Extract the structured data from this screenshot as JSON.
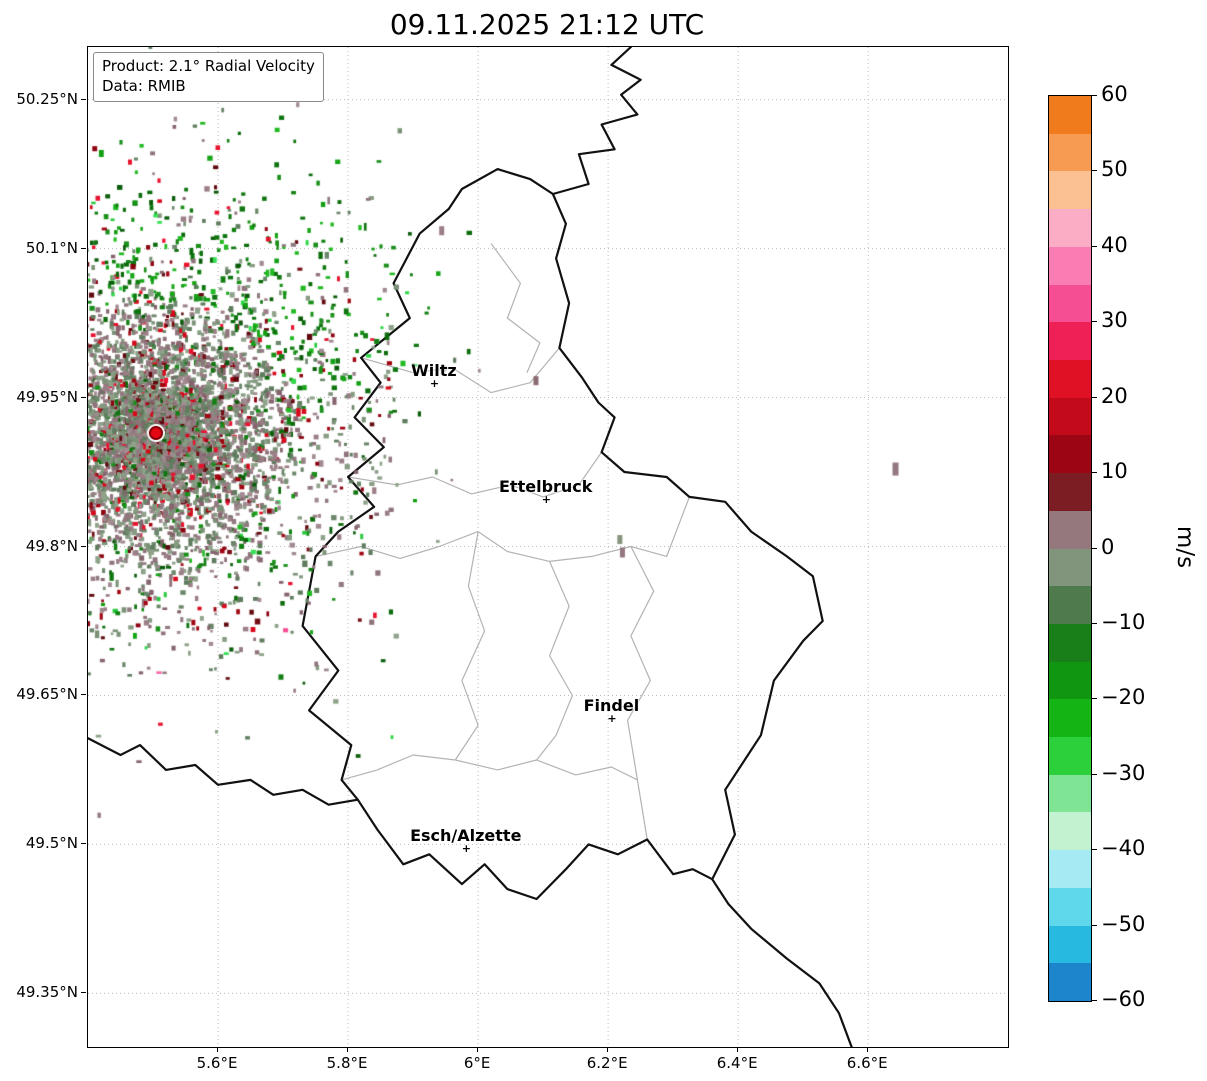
{
  "title": "09.11.2025 21:12 UTC",
  "info_box": {
    "product": "Product: 2.1° Radial Velocity",
    "source": "Data: RMIB"
  },
  "chart_data": {
    "type": "scatter",
    "title": "09.11.2025 21:12 UTC",
    "product": "2.1° Radial Velocity",
    "data_source": "RMIB",
    "x_axis": {
      "range": [
        5.4,
        6.815
      ],
      "ticks": [
        {
          "value": 5.6,
          "label": "5.6°E"
        },
        {
          "value": 5.8,
          "label": "5.8°E"
        },
        {
          "value": 6.0,
          "label": "6°E"
        },
        {
          "value": 6.2,
          "label": "6.2°E"
        },
        {
          "value": 6.4,
          "label": "6.4°E"
        },
        {
          "value": 6.6,
          "label": "6.6°E"
        }
      ]
    },
    "y_axis": {
      "range": [
        49.296,
        50.303
      ],
      "ticks": [
        {
          "value": 50.25,
          "label": "50.25°N"
        },
        {
          "value": 50.1,
          "label": "50.1°N"
        },
        {
          "value": 49.95,
          "label": "49.95°N"
        },
        {
          "value": 49.8,
          "label": "49.8°N"
        },
        {
          "value": 49.65,
          "label": "49.65°N"
        },
        {
          "value": 49.5,
          "label": "49.5°N"
        },
        {
          "value": 49.35,
          "label": "49.35°N"
        }
      ]
    },
    "colorbar": {
      "unit": "m/s",
      "range": [
        -60,
        60
      ],
      "ticks": [
        {
          "value": 60,
          "label": "60"
        },
        {
          "value": 50,
          "label": "50"
        },
        {
          "value": 40,
          "label": "40"
        },
        {
          "value": 30,
          "label": "30"
        },
        {
          "value": 20,
          "label": "20"
        },
        {
          "value": 10,
          "label": "10"
        },
        {
          "value": 0,
          "label": "0"
        },
        {
          "value": -10,
          "label": "−10"
        },
        {
          "value": -20,
          "label": "−20"
        },
        {
          "value": -30,
          "label": "−30"
        },
        {
          "value": -40,
          "label": "−40"
        },
        {
          "value": -50,
          "label": "−50"
        },
        {
          "value": -60,
          "label": "−60"
        }
      ],
      "bands": [
        {
          "from": 55,
          "to": 60,
          "color": "#ef7b1d"
        },
        {
          "from": 50,
          "to": 55,
          "color": "#f79b52"
        },
        {
          "from": 45,
          "to": 50,
          "color": "#fbc192"
        },
        {
          "from": 40,
          "to": 45,
          "color": "#fbadc6"
        },
        {
          "from": 35,
          "to": 40,
          "color": "#f97db2"
        },
        {
          "from": 30,
          "to": 35,
          "color": "#f64e93"
        },
        {
          "from": 25,
          "to": 30,
          "color": "#ef2056"
        },
        {
          "from": 20,
          "to": 25,
          "color": "#e01025"
        },
        {
          "from": 15,
          "to": 20,
          "color": "#c30a1b"
        },
        {
          "from": 10,
          "to": 15,
          "color": "#9c0513"
        },
        {
          "from": 5,
          "to": 10,
          "color": "#7c1d24"
        },
        {
          "from": 0,
          "to": 5,
          "color": "#95777e"
        },
        {
          "from": -5,
          "to": 0,
          "color": "#81957d"
        },
        {
          "from": -10,
          "to": -5,
          "color": "#4f7a4e"
        },
        {
          "from": -15,
          "to": -10,
          "color": "#197f19"
        },
        {
          "from": -20,
          "to": -15,
          "color": "#109610"
        },
        {
          "from": -25,
          "to": -20,
          "color": "#13b413"
        },
        {
          "from": -30,
          "to": -25,
          "color": "#2bd03b"
        },
        {
          "from": -35,
          "to": -30,
          "color": "#7fe493"
        },
        {
          "from": -40,
          "to": -35,
          "color": "#c2f2d0"
        },
        {
          "from": -45,
          "to": -40,
          "color": "#a6ebf3"
        },
        {
          "from": -50,
          "to": -45,
          "color": "#5fd8ec"
        },
        {
          "from": -55,
          "to": -50,
          "color": "#27b9e0"
        },
        {
          "from": -60,
          "to": -55,
          "color": "#1c85cc"
        }
      ]
    },
    "radar_site": {
      "lon": 5.505,
      "lat": 49.914,
      "color": "#e30613"
    },
    "cities": [
      {
        "name": "Wiltz",
        "lon": 5.932,
        "lat": 49.965
      },
      {
        "name": "Ettelbruck",
        "lon": 6.104,
        "lat": 49.848
      },
      {
        "name": "Findel",
        "lon": 6.205,
        "lat": 49.627
      },
      {
        "name": "Esch/Alzette",
        "lon": 5.981,
        "lat": 49.496
      }
    ],
    "borders": {
      "country_color": "#111111",
      "region_color": "#b3b3b3",
      "country": [
        [
          [
            6.235,
            50.303
          ],
          [
            6.205,
            50.285
          ],
          [
            6.25,
            50.27
          ],
          [
            6.22,
            50.255
          ],
          [
            6.245,
            50.235
          ],
          [
            6.19,
            50.225
          ],
          [
            6.21,
            50.2
          ],
          [
            6.155,
            50.195
          ],
          [
            6.17,
            50.165
          ],
          [
            6.115,
            50.155
          ]
        ],
        [
          [
            6.135,
            50.125
          ],
          [
            6.12,
            50.09
          ],
          [
            6.14,
            50.045
          ],
          [
            6.125,
            50.0
          ],
          [
            6.16,
            49.97
          ],
          [
            6.185,
            49.945
          ],
          [
            6.21,
            49.93
          ],
          [
            6.19,
            49.895
          ],
          [
            6.225,
            49.875
          ],
          [
            6.29,
            49.87
          ],
          [
            6.325,
            49.85
          ],
          [
            6.38,
            49.845
          ],
          [
            6.42,
            49.815
          ],
          [
            6.475,
            49.79
          ],
          [
            6.515,
            49.77
          ],
          [
            6.53,
            49.725
          ],
          [
            6.5,
            49.705
          ],
          [
            6.455,
            49.665
          ],
          [
            6.435,
            49.61
          ],
          [
            6.38,
            49.555
          ],
          [
            6.395,
            49.51
          ],
          [
            6.36,
            49.465
          ],
          [
            6.33,
            49.475
          ],
          [
            6.3,
            49.47
          ],
          [
            6.26,
            49.505
          ],
          [
            6.215,
            49.49
          ],
          [
            6.17,
            49.5
          ],
          [
            6.135,
            49.475
          ],
          [
            6.09,
            49.445
          ],
          [
            6.045,
            49.455
          ],
          [
            6.01,
            49.48
          ],
          [
            5.975,
            49.46
          ],
          [
            5.925,
            49.49
          ],
          [
            5.885,
            49.48
          ],
          [
            5.845,
            49.515
          ],
          [
            5.815,
            49.545
          ],
          [
            5.79,
            49.565
          ],
          [
            5.805,
            49.6
          ],
          [
            5.74,
            49.635
          ],
          [
            5.785,
            49.675
          ],
          [
            5.73,
            49.72
          ],
          [
            5.75,
            49.79
          ],
          [
            5.785,
            49.815
          ],
          [
            5.84,
            49.84
          ],
          [
            5.8,
            49.87
          ],
          [
            5.855,
            49.9
          ],
          [
            5.81,
            49.93
          ],
          [
            5.85,
            49.965
          ],
          [
            5.82,
            49.99
          ],
          [
            5.895,
            50.03
          ],
          [
            5.87,
            50.065
          ],
          [
            5.91,
            50.115
          ],
          [
            5.955,
            50.14
          ],
          [
            5.975,
            50.16
          ],
          [
            6.03,
            50.18
          ],
          [
            6.08,
            50.17
          ],
          [
            6.115,
            50.155
          ],
          [
            6.135,
            50.125
          ]
        ],
        [
          [
            5.4,
            49.607
          ],
          [
            5.45,
            49.59
          ],
          [
            5.48,
            49.6
          ],
          [
            5.52,
            49.575
          ],
          [
            5.565,
            49.58
          ],
          [
            5.6,
            49.56
          ],
          [
            5.65,
            49.565
          ],
          [
            5.685,
            49.55
          ],
          [
            5.73,
            49.555
          ],
          [
            5.77,
            49.54
          ],
          [
            5.815,
            49.545
          ]
        ],
        [
          [
            6.36,
            49.465
          ],
          [
            6.385,
            49.44
          ],
          [
            6.42,
            49.415
          ],
          [
            6.475,
            49.385
          ],
          [
            6.525,
            49.36
          ],
          [
            6.555,
            49.33
          ],
          [
            6.575,
            49.295
          ]
        ]
      ],
      "regions": [
        [
          [
            5.82,
            49.99
          ],
          [
            5.9,
            49.975
          ],
          [
            5.96,
            49.98
          ],
          [
            6.02,
            49.955
          ],
          [
            6.08,
            49.965
          ],
          [
            6.125,
            50.0
          ]
        ],
        [
          [
            5.8,
            49.87
          ],
          [
            5.875,
            49.862
          ],
          [
            5.93,
            49.87
          ],
          [
            5.99,
            49.853
          ],
          [
            6.05,
            49.862
          ],
          [
            6.1,
            49.85
          ],
          [
            6.155,
            49.862
          ],
          [
            6.19,
            49.895
          ]
        ],
        [
          [
            5.75,
            49.79
          ],
          [
            5.82,
            49.8
          ],
          [
            5.88,
            49.788
          ],
          [
            5.94,
            49.8
          ],
          [
            6.0,
            49.815
          ],
          [
            6.045,
            49.795
          ],
          [
            6.11,
            49.785
          ],
          [
            6.175,
            49.79
          ],
          [
            6.235,
            49.8
          ],
          [
            6.29,
            49.79
          ],
          [
            6.325,
            49.85
          ]
        ],
        [
          [
            6.0,
            49.815
          ],
          [
            5.985,
            49.76
          ],
          [
            6.01,
            49.715
          ],
          [
            5.975,
            49.665
          ],
          [
            6.0,
            49.62
          ],
          [
            5.965,
            49.585
          ]
        ],
        [
          [
            5.965,
            49.585
          ],
          [
            5.9,
            49.59
          ],
          [
            5.845,
            49.575
          ],
          [
            5.79,
            49.565
          ]
        ],
        [
          [
            5.965,
            49.585
          ],
          [
            6.03,
            49.575
          ],
          [
            6.09,
            49.585
          ],
          [
            6.15,
            49.57
          ],
          [
            6.205,
            49.578
          ],
          [
            6.245,
            49.565
          ],
          [
            6.26,
            49.505
          ]
        ],
        [
          [
            6.235,
            49.8
          ],
          [
            6.27,
            49.755
          ],
          [
            6.235,
            49.71
          ],
          [
            6.265,
            49.665
          ],
          [
            6.23,
            49.625
          ],
          [
            6.245,
            49.565
          ]
        ],
        [
          [
            6.11,
            49.785
          ],
          [
            6.14,
            49.74
          ],
          [
            6.11,
            49.69
          ],
          [
            6.145,
            49.65
          ],
          [
            6.12,
            49.61
          ],
          [
            6.09,
            49.585
          ]
        ],
        [
          [
            6.02,
            50.105
          ],
          [
            6.065,
            50.065
          ],
          [
            6.045,
            50.03
          ],
          [
            6.095,
            50.005
          ],
          [
            6.075,
            49.975
          ]
        ]
      ]
    },
    "velocity_field": {
      "seed": 11,
      "n_samples": 9500,
      "mean_radius_px": 112,
      "max_radius_px": 400,
      "palette": {
        "gray_green": [
          "#7b9278",
          "#6b866a",
          "#879c83",
          "#5f7c5e",
          "#8fa38b"
        ],
        "gray_mauve": [
          "#9b7e86",
          "#8f737b",
          "#a18a90",
          "#86646d",
          "#927a81"
        ],
        "green_dark": [
          "#0b6b0b",
          "#127f12",
          "#0a5c0a",
          "#1a8f1a",
          "#0e750e"
        ],
        "green_mid": [
          "#17a517",
          "#21b921",
          "#12a012"
        ],
        "green_bright": [
          "#2ed648",
          "#35e055",
          "#28c93e"
        ],
        "red_dark": [
          "#8c0210",
          "#a1030f",
          "#730d14",
          "#60080e"
        ],
        "red_bright": [
          "#d8071a",
          "#e8112d"
        ],
        "pink": [
          "#f868a8",
          "#f64e93",
          "#fba9c4"
        ]
      }
    },
    "isolated_points": [
      {
        "lon": 6.642,
        "lat": 49.878,
        "w": 6,
        "h": 13,
        "color": "#93787f"
      },
      {
        "lon": 6.089,
        "lat": 49.967,
        "w": 5,
        "h": 9,
        "color": "#8a6b72"
      },
      {
        "lon": 6.218,
        "lat": 49.807,
        "w": 5,
        "h": 9,
        "color": "#87957f"
      },
      {
        "lon": 6.222,
        "lat": 49.794,
        "w": 5,
        "h": 10,
        "color": "#93787f"
      },
      {
        "lon": 5.944,
        "lat": 50.118,
        "w": 5,
        "h": 9,
        "color": "#9b7e86"
      }
    ]
  }
}
